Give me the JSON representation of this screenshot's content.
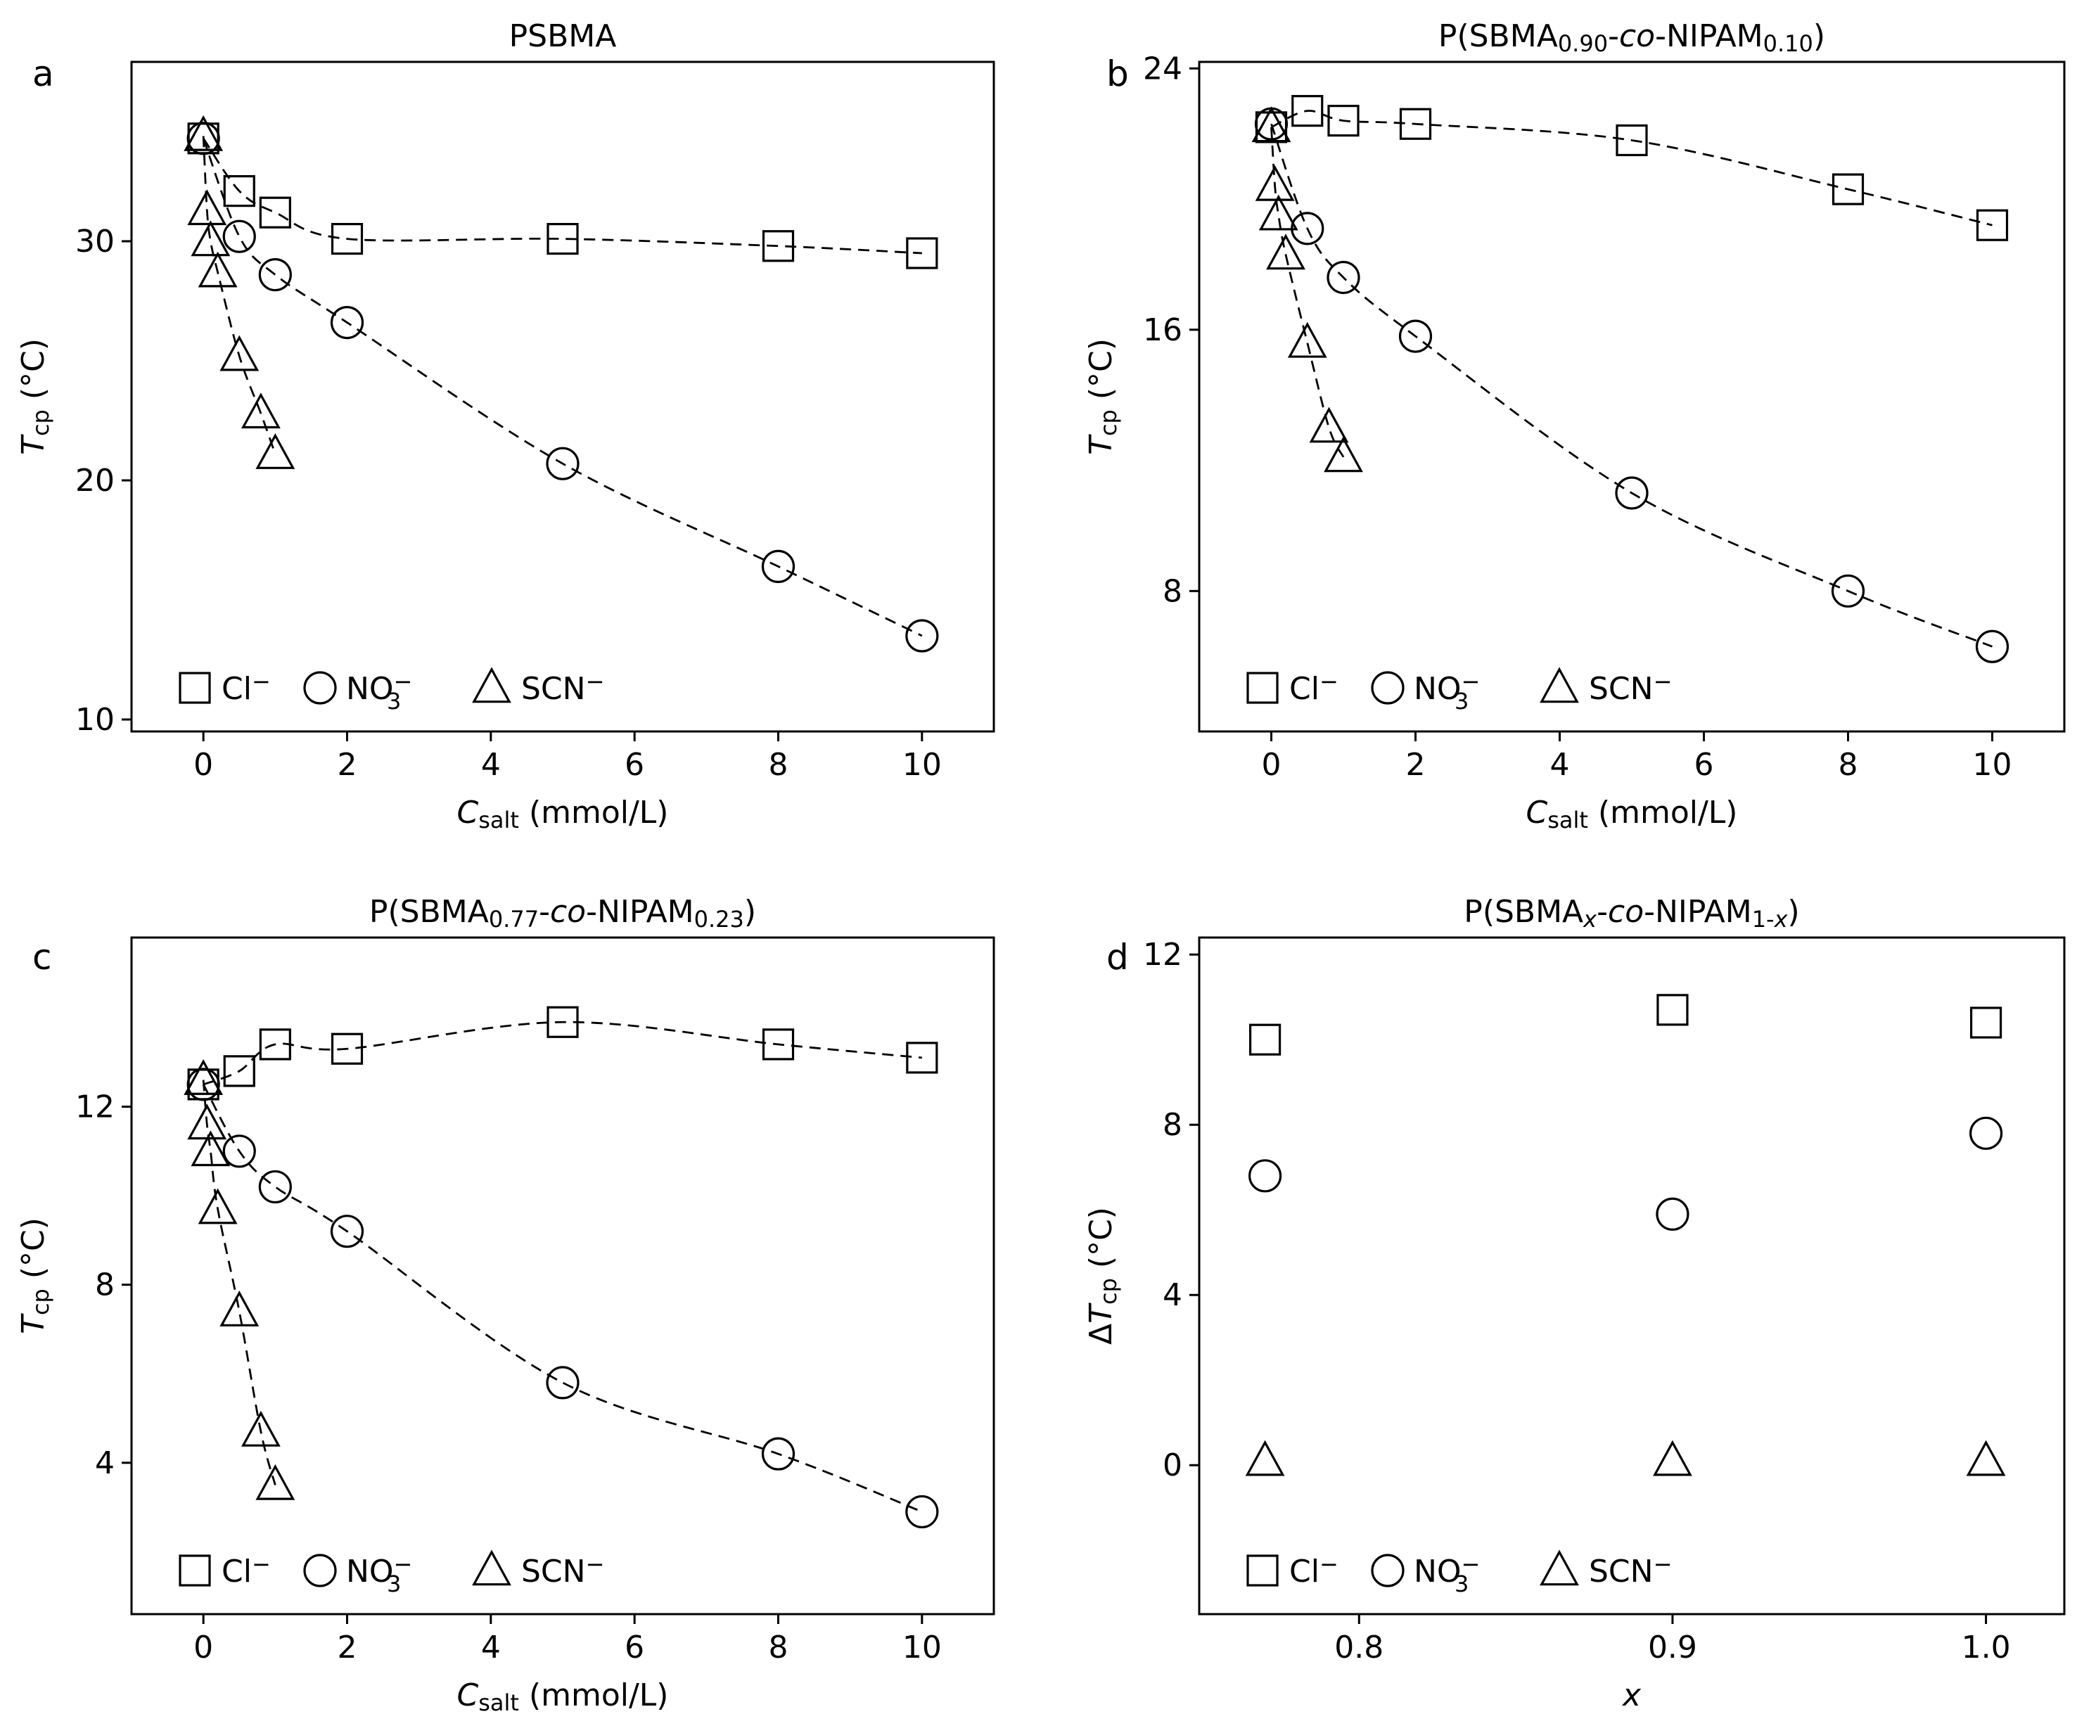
{
  "legend_items": [
    {
      "symbol": "square",
      "ion": "Cl",
      "charge": "−",
      "sub": ""
    },
    {
      "symbol": "circle",
      "ion": "NO",
      "charge": "−",
      "sub": "3"
    },
    {
      "symbol": "triangle",
      "ion": "SCN",
      "charge": "−",
      "sub": ""
    }
  ],
  "chart_data": [
    {
      "panel": "a",
      "type": "scatter",
      "title": [
        {
          "t": "PSBMA"
        }
      ],
      "xlabel": [
        {
          "t": "C",
          "style": "italic"
        },
        {
          "t": "salt",
          "style": "sub"
        },
        {
          "t": " (mmol/L)"
        }
      ],
      "ylabel": [
        {
          "t": "T",
          "style": "italic"
        },
        {
          "t": "cp",
          "style": "sub"
        },
        {
          "t": " (°C)"
        }
      ],
      "xlim": [
        -1,
        11
      ],
      "ylim": [
        9.5,
        37.5
      ],
      "xticks": [
        0,
        2,
        4,
        6,
        8,
        10
      ],
      "xtick_labels": [
        "0",
        "2",
        "4",
        "6",
        "8",
        "10"
      ],
      "yticks": [
        10,
        20,
        30
      ],
      "ytick_labels": [
        "10",
        "20",
        "30"
      ],
      "legend": "lower-left",
      "series": [
        {
          "ion": "Cl",
          "marker": "square",
          "x": [
            0,
            0.5,
            1,
            2,
            5,
            8,
            10
          ],
          "y": [
            34.3,
            32.1,
            31.2,
            30.1,
            30.1,
            29.8,
            29.5
          ],
          "fit": true
        },
        {
          "ion": "NO3",
          "marker": "circle",
          "x": [
            0,
            0.5,
            1,
            2,
            5,
            8,
            10
          ],
          "y": [
            34.3,
            30.2,
            28.6,
            26.6,
            20.7,
            16.4,
            13.5
          ],
          "fit": true
        },
        {
          "ion": "SCN",
          "marker": "triangle",
          "x": [
            0,
            0.05,
            0.1,
            0.2,
            0.5,
            0.8,
            1
          ],
          "y": [
            34.4,
            31.3,
            30.0,
            28.7,
            25.2,
            22.8,
            21.1
          ],
          "fit": true
        }
      ]
    },
    {
      "panel": "b",
      "type": "scatter",
      "title": [
        {
          "t": "P(SBMA"
        },
        {
          "t": "0.90",
          "style": "sub"
        },
        {
          "t": "-"
        },
        {
          "t": "co",
          "style": "italic"
        },
        {
          "t": "-NIPAM"
        },
        {
          "t": "0.10",
          "style": "sub"
        },
        {
          "t": ")"
        }
      ],
      "xlabel": [
        {
          "t": "C",
          "style": "italic"
        },
        {
          "t": "salt",
          "style": "sub"
        },
        {
          "t": " (mmol/L)"
        }
      ],
      "ylabel": [
        {
          "t": "T",
          "style": "italic"
        },
        {
          "t": "cp",
          "style": "sub"
        },
        {
          "t": " (°C)"
        }
      ],
      "xlim": [
        -1,
        11
      ],
      "ylim": [
        3.7,
        24.2
      ],
      "xticks": [
        0,
        2,
        4,
        6,
        8,
        10
      ],
      "xtick_labels": [
        "0",
        "2",
        "4",
        "6",
        "8",
        "10"
      ],
      "yticks": [
        8,
        16,
        24
      ],
      "ytick_labels": [
        "8",
        "16",
        "24"
      ],
      "legend": "lower-left",
      "series": [
        {
          "ion": "Cl",
          "marker": "square",
          "x": [
            0,
            0.5,
            1,
            2,
            5,
            8,
            10
          ],
          "y": [
            22.2,
            22.7,
            22.4,
            22.3,
            21.8,
            20.3,
            19.2
          ],
          "fit": true
        },
        {
          "ion": "NO3",
          "marker": "circle",
          "x": [
            0,
            0.5,
            1,
            2,
            5,
            8,
            10
          ],
          "y": [
            22.3,
            19.1,
            17.6,
            15.8,
            11.0,
            8.0,
            6.3
          ],
          "fit": true
        },
        {
          "ion": "SCN",
          "marker": "triangle",
          "x": [
            0,
            0.05,
            0.1,
            0.2,
            0.5,
            0.8,
            1
          ],
          "y": [
            22.2,
            20.4,
            19.5,
            18.3,
            15.6,
            13.0,
            12.1
          ],
          "fit": true
        }
      ]
    },
    {
      "panel": "c",
      "type": "scatter",
      "title": [
        {
          "t": "P(SBMA"
        },
        {
          "t": "0.77",
          "style": "sub"
        },
        {
          "t": "-"
        },
        {
          "t": "co",
          "style": "italic"
        },
        {
          "t": "-NIPAM"
        },
        {
          "t": "0.23",
          "style": "sub"
        },
        {
          "t": ")"
        }
      ],
      "xlabel": [
        {
          "t": "C",
          "style": "italic"
        },
        {
          "t": "salt",
          "style": "sub"
        },
        {
          "t": " (mmol/L)"
        }
      ],
      "ylabel": [
        {
          "t": "T",
          "style": "italic"
        },
        {
          "t": "cp",
          "style": "sub"
        },
        {
          "t": " (°C)"
        }
      ],
      "xlim": [
        -1,
        11
      ],
      "ylim": [
        0.6,
        15.8
      ],
      "xticks": [
        0,
        2,
        4,
        6,
        8,
        10
      ],
      "xtick_labels": [
        "0",
        "2",
        "4",
        "6",
        "8",
        "10"
      ],
      "yticks": [
        4,
        8,
        12
      ],
      "ytick_labels": [
        "4",
        "8",
        "12"
      ],
      "legend": "lower-left",
      "series": [
        {
          "ion": "Cl",
          "marker": "square",
          "x": [
            0,
            0.5,
            1,
            2,
            5,
            8,
            10
          ],
          "y": [
            12.5,
            12.8,
            13.4,
            13.3,
            13.9,
            13.4,
            13.1
          ],
          "fit": true
        },
        {
          "ion": "NO3",
          "marker": "circle",
          "x": [
            0,
            0.5,
            1,
            2,
            5,
            8,
            10
          ],
          "y": [
            12.5,
            11.0,
            10.2,
            9.2,
            5.8,
            4.2,
            2.9
          ],
          "fit": true
        },
        {
          "ion": "SCN",
          "marker": "triangle",
          "x": [
            0,
            0.05,
            0.1,
            0.2,
            0.5,
            0.8,
            1
          ],
          "y": [
            12.6,
            11.6,
            11.0,
            9.7,
            7.4,
            4.7,
            3.5
          ],
          "fit": true
        }
      ]
    },
    {
      "panel": "d",
      "type": "scatter",
      "title": [
        {
          "t": "P(SBMA"
        },
        {
          "t": "x",
          "style": "sub-italic"
        },
        {
          "t": "-"
        },
        {
          "t": "co",
          "style": "italic"
        },
        {
          "t": "-NIPAM"
        },
        {
          "t": "1-",
          "style": "sub"
        },
        {
          "t": "x",
          "style": "sub-italic"
        },
        {
          "t": ")"
        }
      ],
      "xlabel": [
        {
          "t": "x",
          "style": "italic"
        }
      ],
      "ylabel": [
        {
          "t": "Δ"
        },
        {
          "t": "T",
          "style": "italic"
        },
        {
          "t": "cp",
          "style": "sub"
        },
        {
          "t": " (°C)"
        }
      ],
      "xlim": [
        0.749,
        1.025
      ],
      "ylim": [
        -3.5,
        12.4
      ],
      "xticks": [
        0.8,
        0.9,
        1.0
      ],
      "xtick_labels": [
        "0.8",
        "0.9",
        "1.0"
      ],
      "yticks": [
        0,
        4,
        8,
        12
      ],
      "ytick_labels": [
        "0",
        "4",
        "8",
        "12"
      ],
      "legend": "lower-left",
      "series": [
        {
          "ion": "Cl",
          "marker": "square",
          "x": [
            0.77,
            0.9,
            1.0
          ],
          "y": [
            10.0,
            10.7,
            10.4
          ],
          "fit": false
        },
        {
          "ion": "NO3",
          "marker": "circle",
          "x": [
            0.77,
            0.9,
            1.0
          ],
          "y": [
            6.8,
            5.9,
            7.8
          ],
          "fit": false
        },
        {
          "ion": "SCN",
          "marker": "triangle",
          "x": [
            0.77,
            0.9,
            1.0
          ],
          "y": [
            0.1,
            0.1,
            0.1
          ],
          "fit": false
        }
      ]
    }
  ]
}
